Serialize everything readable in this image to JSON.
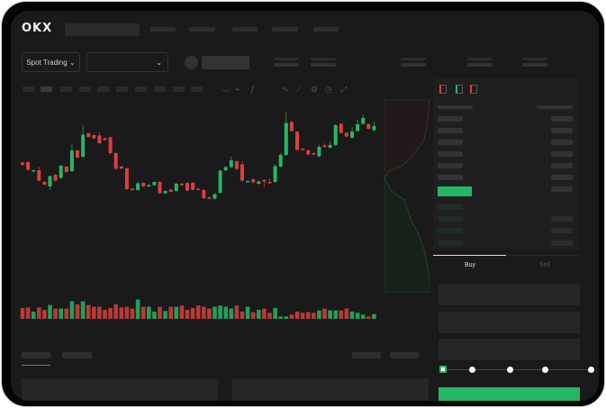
{
  "header": {
    "logo": "OKX"
  },
  "toolbar": {
    "market_type": "Spot Trading",
    "pair_dropdown_value": ""
  },
  "order_form": {
    "tabs": [
      "Buy",
      "Sell"
    ],
    "active_tab": "Buy"
  },
  "colors": {
    "up": "#26b765",
    "down": "#d9403f",
    "background": "#1a1a1a",
    "panel": "#1f1f1f"
  },
  "chart_data": {
    "type": "candlestick",
    "candles": [
      [
        62.5,
        60
      ],
      [
        63,
        54.5
      ],
      [
        52.5,
        54
      ],
      [
        54,
        42.5,
        58
      ],
      [
        41,
        38
      ],
      [
        36,
        47.5,
        48,
        32
      ],
      [
        49,
        42.5
      ],
      [
        45.5,
        59
      ],
      [
        58,
        52
      ],
      [
        53,
        76,
        83
      ],
      [
        76,
        68
      ],
      [
        69,
        93.5,
        104
      ],
      [
        95,
        91
      ],
      [
        93,
        89.5
      ],
      [
        92.5,
        84,
        96.5
      ],
      [
        89.5,
        87.5
      ],
      [
        90.5,
        73
      ],
      [
        73,
        55.5
      ],
      [
        58,
        56
      ],
      [
        56,
        33
      ],
      [
        33.5,
        32
      ],
      [
        32,
        39.5
      ],
      [
        40,
        36
      ],
      [
        36,
        37.5
      ],
      [
        37.5,
        41
      ],
      [
        41,
        28.5
      ],
      [
        28.5,
        31
      ],
      [
        32.5,
        30
      ],
      [
        31,
        39
      ],
      [
        39,
        37.5
      ],
      [
        40,
        31.5
      ],
      [
        40,
        32.5
      ],
      [
        33.5,
        32.5
      ],
      [
        32,
        23
      ],
      [
        24,
        22.5
      ],
      [
        22.5,
        27.5
      ],
      [
        29,
        53.5
      ],
      [
        54,
        57.5
      ],
      [
        57.5,
        65,
        69
      ],
      [
        64,
        55.5
      ],
      [
        60.5,
        42.5,
        64
      ],
      [
        41.5,
        42
      ],
      [
        44,
        40.5
      ],
      [
        39,
        41.5
      ],
      [
        43,
        42,
        44,
        35
      ],
      [
        41,
        40,
        45
      ],
      [
        41,
        58.5,
        61
      ],
      [
        58,
        71,
        73
      ],
      [
        71,
        106.5,
        118
      ],
      [
        107.5,
        97.5,
        109
      ],
      [
        97,
        76.5,
        74
      ],
      [
        78,
        76.5
      ],
      [
        76,
        71.5
      ],
      [
        73,
        71.5
      ],
      [
        69.5,
        80,
        82
      ],
      [
        81.5,
        80,
        84
      ],
      [
        79,
        82,
        86
      ],
      [
        82,
        104
      ],
      [
        105.5,
        95.5
      ],
      [
        95.5,
        91.5
      ],
      [
        90,
        97,
        102
      ],
      [
        97.5,
        105,
        110
      ],
      [
        105.5,
        112,
        116
      ],
      [
        105.5,
        100,
        98
      ],
      [
        98.5,
        103,
        108
      ]
    ],
    "volume": [
      18,
      19,
      12,
      19,
      15,
      23,
      17,
      17,
      17,
      29,
      24,
      29,
      23,
      20,
      20,
      15,
      18,
      24,
      19,
      20,
      17,
      32,
      20,
      20,
      12,
      20,
      13,
      20,
      20,
      22,
      15,
      18,
      22,
      20,
      17,
      20,
      22,
      20,
      17,
      22,
      12,
      20,
      11,
      15,
      17,
      10,
      18,
      4,
      4,
      7,
      12,
      10,
      11,
      10,
      14,
      17,
      14,
      14,
      14,
      17,
      12,
      10,
      7,
      4,
      8
    ]
  }
}
